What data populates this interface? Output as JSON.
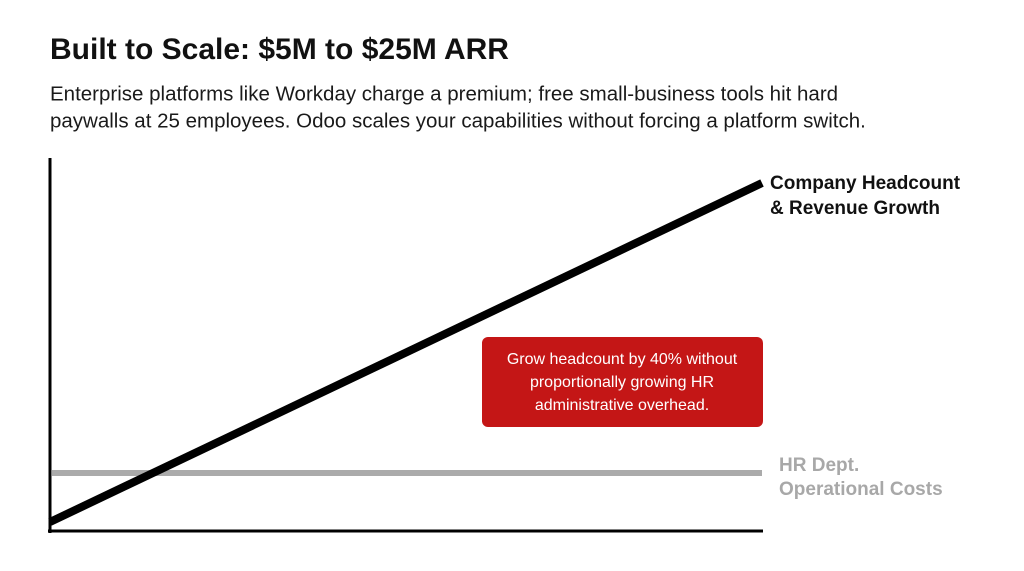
{
  "header": {
    "title": "Built to Scale: $5M to $25M ARR",
    "subtitle": [
      "Enterprise platforms like Workday charge a premium; free small-business tools hit hard",
      "paywalls at 25 employees. Odoo scales your capabilities without forcing a platform switch."
    ]
  },
  "diagram": {
    "growth_label": [
      "Company Headcount",
      "& Revenue Growth"
    ],
    "cost_label": [
      "HR Dept.",
      "Operational Costs"
    ],
    "callout": [
      "Grow headcount by 40% without",
      "proportionally growing HR",
      "administrative overhead."
    ]
  }
}
